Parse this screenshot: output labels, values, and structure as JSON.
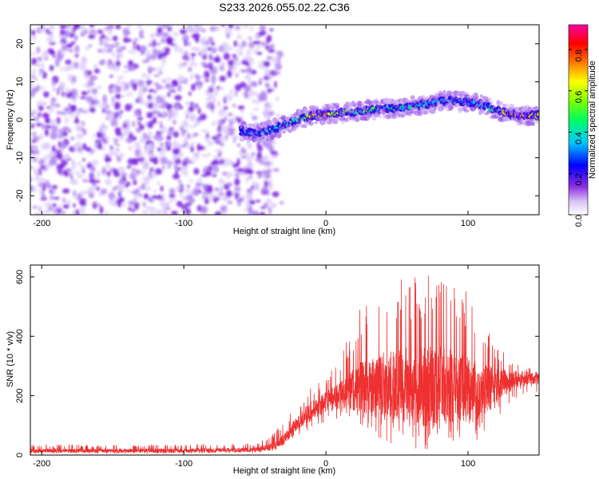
{
  "title": "S233.2026.055.02.22.C36",
  "chart_data": [
    {
      "type": "heatmap",
      "title": "S233.2026.055.02.22.C36",
      "xlabel": "Height of straight line (km)",
      "ylabel": "Frequency (Hz)",
      "xlim": [
        -208,
        150
      ],
      "ylim": [
        -25,
        25
      ],
      "xticks": [
        -200,
        -100,
        0,
        100
      ],
      "yticks": [
        -20,
        -10,
        0,
        10,
        20
      ],
      "colorbar": {
        "label": "Normalized spectral amplitude",
        "range": [
          0,
          0.92
        ],
        "ticks": [
          0.0,
          0.2,
          0.4,
          0.6,
          0.8
        ],
        "tick_labels": [
          "0.0",
          "0.2",
          "0.4",
          "0.6",
          "0.8"
        ],
        "colormap": [
          "#ffffff",
          "#7b00e0",
          "#0000ff",
          "#00c8ff",
          "#00ff00",
          "#ffff00",
          "#ff0000",
          "#ff00a0"
        ]
      },
      "noise_region_x": [
        -208,
        -40
      ],
      "ridge": {
        "x": [
          -60,
          -50,
          -40,
          -30,
          -20,
          -10,
          0,
          10,
          20,
          30,
          40,
          50,
          60,
          70,
          80,
          90,
          100,
          110,
          120,
          130,
          140,
          150
        ],
        "freq_hz": [
          -3,
          -3.5,
          -3,
          -1.5,
          0,
          1,
          1.5,
          1.8,
          2,
          2.5,
          3,
          3,
          3.5,
          4,
          5,
          5,
          4.5,
          4,
          2.5,
          1.5,
          1,
          1.2
        ],
        "peak_amplitude": [
          0.3,
          0.3,
          0.3,
          0.4,
          0.45,
          0.7,
          0.75,
          0.5,
          0.45,
          0.45,
          0.4,
          0.4,
          0.4,
          0.35,
          0.35,
          0.35,
          0.3,
          0.3,
          0.45,
          0.85,
          0.85,
          0.55
        ]
      }
    },
    {
      "type": "line",
      "xlabel": "Height of straight line (km)",
      "ylabel": "SNR (10 * v/v)",
      "xlim": [
        -208,
        150
      ],
      "ylim": [
        0,
        640
      ],
      "xticks": [
        -200,
        -100,
        0,
        100
      ],
      "yticks": [
        0,
        200,
        400,
        600
      ],
      "color": "#ee3030",
      "series": [
        {
          "name": "SNR",
          "envelope_x": [
            -208,
            -100,
            -50,
            -40,
            -30,
            -20,
            -10,
            0,
            10,
            20,
            30,
            40,
            50,
            60,
            70,
            80,
            90,
            100,
            110,
            120,
            130,
            140,
            150
          ],
          "baseline": [
            15,
            15,
            18,
            25,
            50,
            110,
            150,
            180,
            200,
            220,
            240,
            240,
            230,
            240,
            230,
            240,
            230,
            220,
            220,
            240,
            250,
            260,
            260
          ],
          "upper": [
            35,
            35,
            40,
            60,
            110,
            170,
            230,
            260,
            330,
            450,
            560,
            520,
            600,
            590,
            620,
            600,
            580,
            560,
            460,
            380,
            330,
            300,
            300
          ],
          "lower": [
            5,
            5,
            6,
            10,
            25,
            60,
            90,
            110,
            120,
            120,
            80,
            40,
            30,
            20,
            10,
            15,
            10,
            30,
            60,
            120,
            180,
            200,
            210
          ]
        }
      ]
    }
  ]
}
